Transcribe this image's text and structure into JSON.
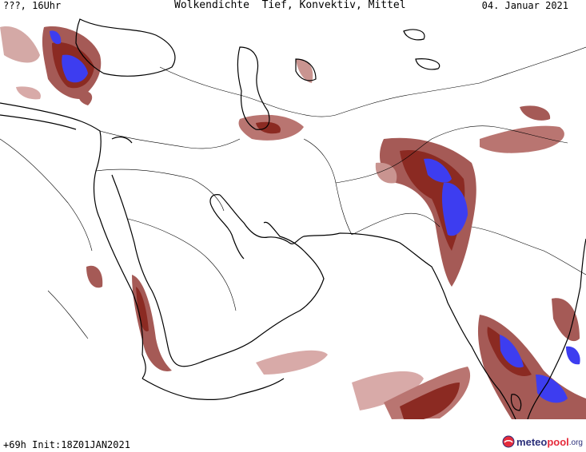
{
  "header": {
    "left": "???, 16Uhr",
    "center": "Wolkendichte  Tief, Konvektiv, Mittel",
    "right": "04. Januar 2021"
  },
  "footer": {
    "left": "+69h Init:18Z01JAN2021",
    "logo": {
      "part1": "meteo",
      "part2": "pool",
      "part3": ".org"
    }
  },
  "colors": {
    "background": "#ffffff",
    "coast": "#000000",
    "border": "#000000",
    "cloud_low": "#d8aaa8",
    "cloud_mid": "#a55a56",
    "cloud_high": "#8b2a22",
    "convective": "#3d3df0"
  }
}
